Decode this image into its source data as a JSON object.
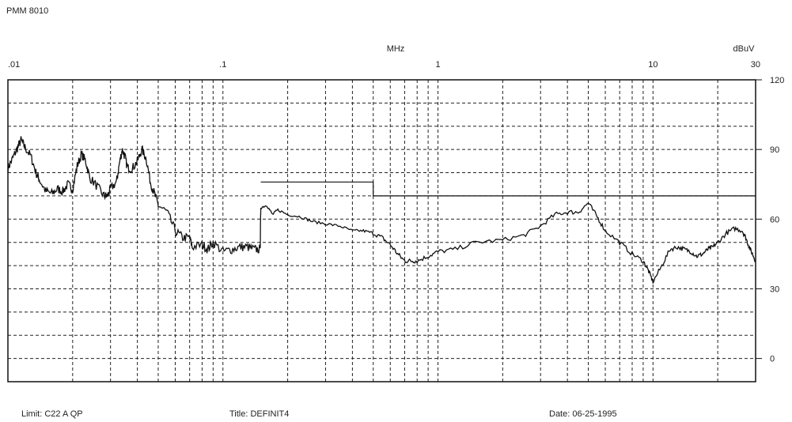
{
  "header": {
    "instrument": "PMM 8010"
  },
  "footer": {
    "limit": "Limit: C22  A  QP",
    "title": "Title: DEFINIT4",
    "date": "Date: 06-25-1995"
  },
  "chart_data": {
    "type": "line",
    "x_scale": "log",
    "xlabel": "MHz",
    "ylabel": "dBuV",
    "xlim": [
      0.01,
      30
    ],
    "ylim": [
      -10,
      120
    ],
    "x_ticks": [
      0.01,
      0.1,
      1,
      10,
      30
    ],
    "x_tick_labels": [
      ".01",
      ".1",
      "1",
      "10",
      "30"
    ],
    "y_ticks": [
      0,
      30,
      60,
      90,
      120
    ],
    "y_tick_labels": [
      "0",
      "30",
      "60",
      "90",
      "120"
    ],
    "grid": true,
    "series": [
      {
        "role": "limit",
        "points": [
          [
            0.15,
            76
          ],
          [
            0.5,
            76
          ],
          [
            0.5,
            70
          ],
          [
            30,
            70
          ]
        ]
      },
      {
        "role": "measurement",
        "noisy": true,
        "points": [
          [
            0.01,
            82
          ],
          [
            0.0105,
            86
          ],
          [
            0.011,
            90
          ],
          [
            0.0115,
            94
          ],
          [
            0.012,
            91
          ],
          [
            0.0128,
            87
          ],
          [
            0.0135,
            80
          ],
          [
            0.014,
            77
          ],
          [
            0.015,
            72
          ],
          [
            0.016,
            71
          ],
          [
            0.017,
            73
          ],
          [
            0.018,
            72
          ],
          [
            0.019,
            75
          ],
          [
            0.02,
            73
          ],
          [
            0.021,
            83
          ],
          [
            0.022,
            88
          ],
          [
            0.023,
            85
          ],
          [
            0.024,
            78
          ],
          [
            0.026,
            74
          ],
          [
            0.028,
            70
          ],
          [
            0.029,
            70
          ],
          [
            0.03,
            73
          ],
          [
            0.032,
            76
          ],
          [
            0.033,
            84
          ],
          [
            0.034,
            90
          ],
          [
            0.035,
            87
          ],
          [
            0.036,
            82
          ],
          [
            0.038,
            82
          ],
          [
            0.04,
            85
          ],
          [
            0.042,
            90
          ],
          [
            0.044,
            86
          ],
          [
            0.046,
            76
          ],
          [
            0.048,
            71
          ],
          [
            0.05,
            66
          ],
          [
            0.055,
            63
          ],
          [
            0.06,
            55
          ],
          [
            0.065,
            52
          ],
          [
            0.07,
            52
          ],
          [
            0.072,
            48
          ],
          [
            0.08,
            49
          ],
          [
            0.085,
            47
          ],
          [
            0.09,
            50
          ],
          [
            0.1,
            46
          ],
          [
            0.11,
            47
          ],
          [
            0.12,
            48
          ],
          [
            0.13,
            48
          ],
          [
            0.14,
            47
          ],
          [
            0.149,
            47
          ],
          [
            0.15,
            65
          ],
          [
            0.16,
            66
          ],
          [
            0.17,
            62
          ],
          [
            0.18,
            64
          ],
          [
            0.2,
            62
          ],
          [
            0.23,
            61
          ],
          [
            0.26,
            59
          ],
          [
            0.3,
            58
          ],
          [
            0.35,
            57
          ],
          [
            0.4,
            55
          ],
          [
            0.45,
            55
          ],
          [
            0.5,
            54
          ],
          [
            0.55,
            52
          ],
          [
            0.6,
            49
          ],
          [
            0.65,
            45
          ],
          [
            0.7,
            42
          ],
          [
            0.75,
            42
          ],
          [
            0.8,
            42
          ],
          [
            0.9,
            44
          ],
          [
            1.0,
            46
          ],
          [
            1.2,
            47
          ],
          [
            1.5,
            50
          ],
          [
            2.0,
            51
          ],
          [
            2.5,
            53
          ],
          [
            3.0,
            57
          ],
          [
            3.5,
            62
          ],
          [
            4.0,
            63
          ],
          [
            4.5,
            63
          ],
          [
            5.0,
            67
          ],
          [
            5.5,
            61
          ],
          [
            6.0,
            55
          ],
          [
            7.0,
            50
          ],
          [
            8.0,
            45
          ],
          [
            9.0,
            42
          ],
          [
            9.5,
            38
          ],
          [
            10.0,
            33
          ],
          [
            11.0,
            40
          ],
          [
            12.0,
            47
          ],
          [
            13.0,
            48
          ],
          [
            14.0,
            47
          ],
          [
            15.0,
            46
          ],
          [
            16.0,
            44
          ],
          [
            17.0,
            45
          ],
          [
            18.0,
            47
          ],
          [
            19.0,
            48
          ],
          [
            20.0,
            50
          ],
          [
            22.0,
            54
          ],
          [
            24.0,
            56
          ],
          [
            26.0,
            55
          ],
          [
            27.0,
            52
          ],
          [
            28.0,
            48
          ],
          [
            29.0,
            45
          ],
          [
            30.0,
            42
          ]
        ]
      }
    ]
  }
}
